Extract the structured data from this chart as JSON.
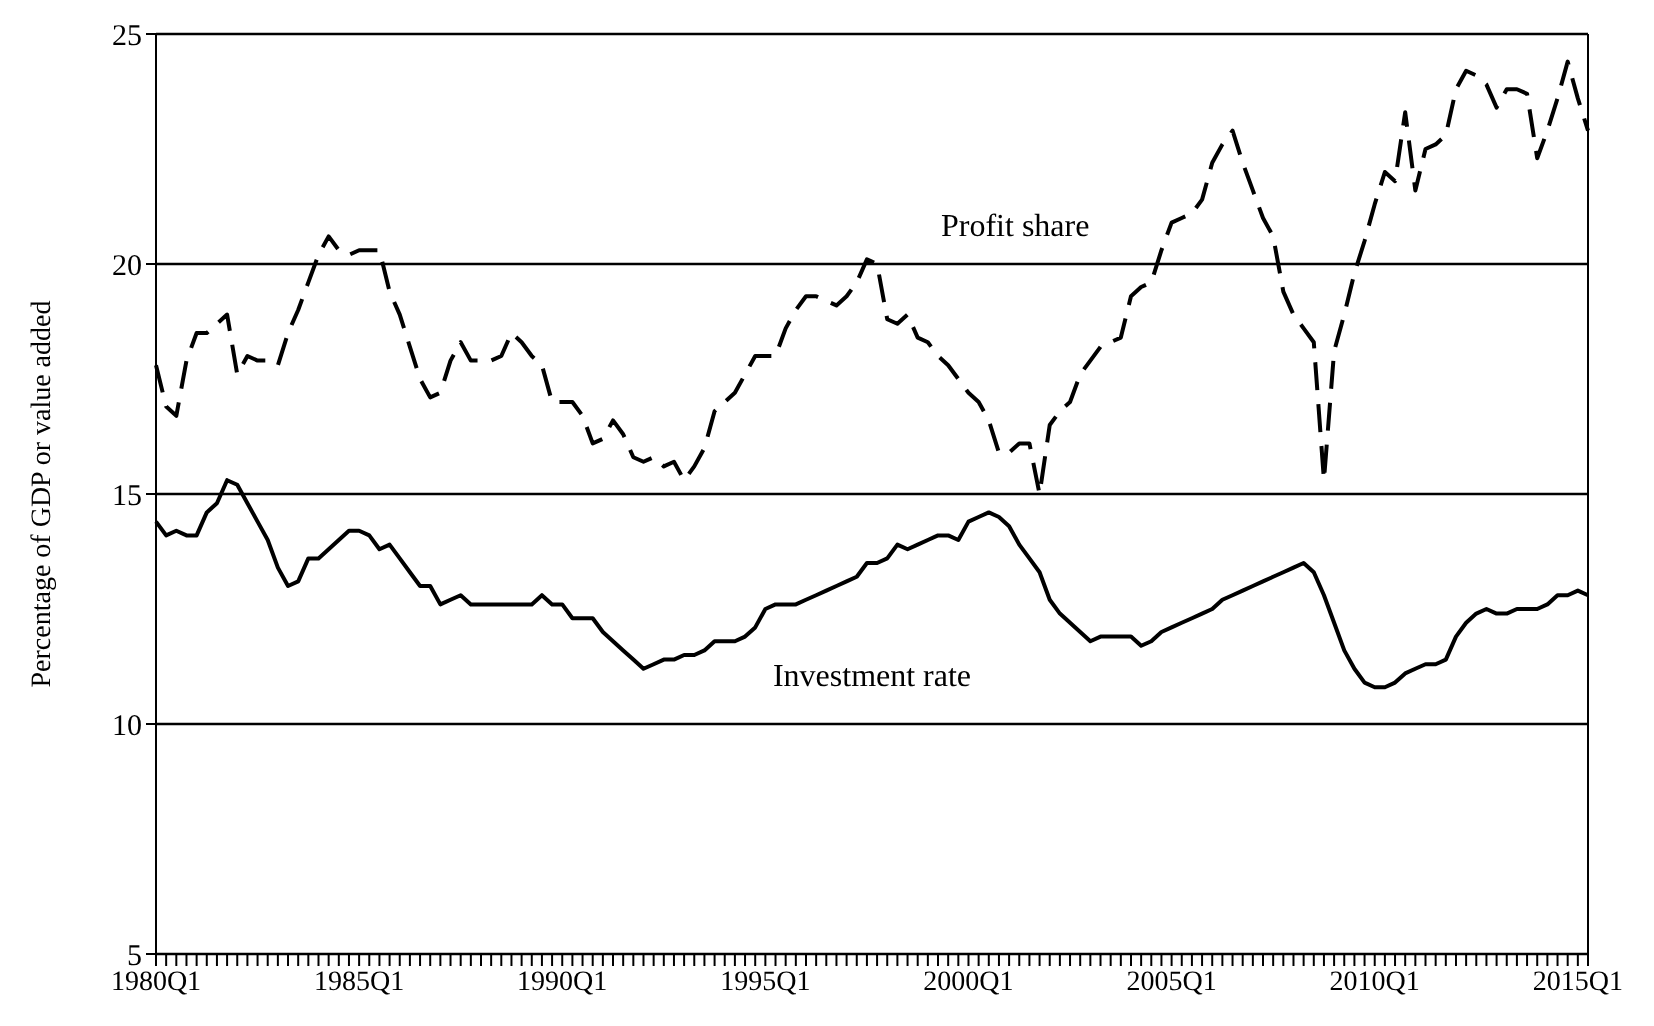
{
  "chart_data": {
    "type": "line",
    "ylabel": "Percentage of GDP or value added",
    "ylim": [
      5,
      25
    ],
    "yticks": [
      5,
      10,
      15,
      20,
      25
    ],
    "grid": "y",
    "legend": false,
    "marker": "none",
    "categories": [
      "1980Q1",
      null,
      null,
      null,
      null,
      null,
      null,
      null,
      null,
      null,
      null,
      null,
      null,
      null,
      null,
      null,
      null,
      null,
      null,
      null,
      "1985Q1",
      null,
      null,
      null,
      null,
      null,
      null,
      null,
      null,
      null,
      null,
      null,
      null,
      null,
      null,
      null,
      null,
      null,
      null,
      null,
      "1990Q1",
      null,
      null,
      null,
      null,
      null,
      null,
      null,
      null,
      null,
      null,
      null,
      null,
      null,
      null,
      null,
      null,
      null,
      null,
      null,
      "1995Q1",
      null,
      null,
      null,
      null,
      null,
      null,
      null,
      null,
      null,
      null,
      null,
      null,
      null,
      null,
      null,
      null,
      null,
      null,
      null,
      "2000Q1",
      null,
      null,
      null,
      null,
      null,
      null,
      null,
      null,
      null,
      null,
      null,
      null,
      null,
      null,
      null,
      null,
      null,
      null,
      null,
      "2005Q1",
      null,
      null,
      null,
      null,
      null,
      null,
      null,
      null,
      null,
      null,
      null,
      null,
      null,
      null,
      null,
      null,
      null,
      null,
      null,
      "2010Q1",
      null,
      null,
      null,
      null,
      null,
      null,
      null,
      null,
      null,
      null,
      null,
      null,
      null,
      null,
      null,
      null,
      null,
      null,
      null,
      "2015Q1",
      null
    ],
    "series": [
      {
        "name": "Profit share",
        "color": "#000000",
        "line_style": "dashed",
        "values": [
          17.8,
          16.9,
          16.7,
          17.9,
          18.5,
          18.5,
          18.7,
          18.9,
          17.6,
          18.0,
          17.9,
          17.9,
          17.8,
          18.5,
          19.0,
          19.6,
          20.2,
          20.6,
          20.3,
          20.2,
          20.3,
          20.3,
          20.3,
          19.4,
          18.9,
          18.2,
          17.5,
          17.1,
          17.2,
          17.9,
          18.3,
          17.9,
          17.9,
          17.9,
          18.0,
          18.5,
          18.3,
          18.0,
          17.8,
          17.0,
          17.0,
          17.0,
          16.7,
          16.1,
          16.2,
          16.6,
          16.3,
          15.8,
          15.7,
          15.8,
          15.6,
          15.7,
          15.3,
          15.6,
          16.0,
          16.8,
          17.0,
          17.2,
          17.6,
          18.0,
          18.0,
          18.0,
          18.6,
          19.0,
          19.3,
          19.3,
          19.2,
          19.1,
          19.3,
          19.6,
          20.1,
          20.0,
          18.8,
          18.7,
          18.9,
          18.4,
          18.3,
          18.0,
          17.8,
          17.5,
          17.2,
          17.0,
          16.6,
          15.9,
          15.9,
          16.1,
          16.1,
          15.0,
          16.5,
          16.8,
          17.0,
          17.6,
          17.9,
          18.2,
          18.3,
          18.4,
          19.3,
          19.5,
          19.6,
          20.3,
          20.9,
          21.0,
          21.1,
          21.4,
          22.2,
          22.6,
          22.9,
          22.2,
          21.6,
          21.0,
          20.6,
          19.4,
          18.9,
          18.6,
          18.3,
          15.3,
          18.1,
          18.9,
          19.8,
          20.5,
          21.3,
          22.0,
          21.8,
          23.3,
          21.6,
          22.5,
          22.6,
          22.8,
          23.8,
          24.2,
          24.1,
          23.9,
          23.4,
          23.8,
          23.8,
          23.7,
          22.3,
          22.9,
          23.6,
          24.4,
          23.6,
          22.9
        ]
      },
      {
        "name": "Investment rate",
        "color": "#000000",
        "line_style": "solid",
        "values": [
          14.4,
          14.1,
          14.2,
          14.1,
          14.1,
          14.6,
          14.8,
          15.3,
          15.2,
          14.8,
          14.4,
          14.0,
          13.4,
          13.0,
          13.1,
          13.6,
          13.6,
          13.8,
          14.0,
          14.2,
          14.2,
          14.1,
          13.8,
          13.9,
          13.6,
          13.3,
          13.0,
          13.0,
          12.6,
          12.7,
          12.8,
          12.6,
          12.6,
          12.6,
          12.6,
          12.6,
          12.6,
          12.6,
          12.8,
          12.6,
          12.6,
          12.3,
          12.3,
          12.3,
          12.0,
          11.8,
          11.6,
          11.4,
          11.2,
          11.3,
          11.4,
          11.4,
          11.5,
          11.5,
          11.6,
          11.8,
          11.8,
          11.8,
          11.9,
          12.1,
          12.5,
          12.6,
          12.6,
          12.6,
          12.7,
          12.8,
          12.9,
          13.0,
          13.1,
          13.2,
          13.5,
          13.5,
          13.6,
          13.9,
          13.8,
          13.9,
          14.0,
          14.1,
          14.1,
          14.0,
          14.4,
          14.5,
          14.6,
          14.5,
          14.3,
          13.9,
          13.6,
          13.3,
          12.7,
          12.4,
          12.2,
          12.0,
          11.8,
          11.9,
          11.9,
          11.9,
          11.9,
          11.7,
          11.8,
          12.0,
          12.1,
          12.2,
          12.3,
          12.4,
          12.5,
          12.7,
          12.8,
          12.9,
          13.0,
          13.1,
          13.2,
          13.3,
          13.4,
          13.5,
          13.3,
          12.8,
          12.2,
          11.6,
          11.2,
          10.9,
          10.8,
          10.8,
          10.9,
          11.1,
          11.2,
          11.3,
          11.3,
          11.4,
          11.9,
          12.2,
          12.4,
          12.5,
          12.4,
          12.4,
          12.5,
          12.5,
          12.5,
          12.6,
          12.8,
          12.8,
          12.9,
          12.8
        ]
      }
    ]
  }
}
